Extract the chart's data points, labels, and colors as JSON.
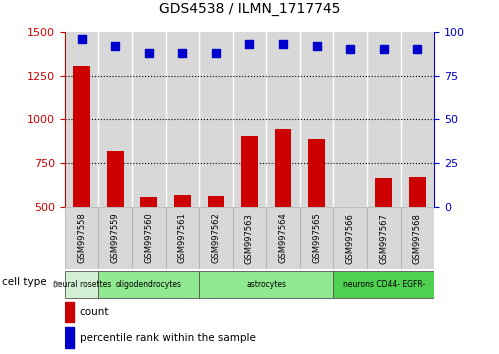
{
  "title": "GDS4538 / ILMN_1717745",
  "samples": [
    "GSM997558",
    "GSM997559",
    "GSM997560",
    "GSM997561",
    "GSM997562",
    "GSM997563",
    "GSM997564",
    "GSM997565",
    "GSM997566",
    "GSM997567",
    "GSM997568"
  ],
  "counts": [
    1305,
    820,
    555,
    570,
    565,
    905,
    945,
    890,
    500,
    665,
    670
  ],
  "percentiles": [
    96,
    92,
    88,
    88,
    88,
    93,
    93,
    92,
    90,
    90,
    90
  ],
  "cell_types": [
    {
      "label": "neural rosettes",
      "start": 0,
      "end": 1,
      "color": "#d4f0d4"
    },
    {
      "label": "oligodendrocytes",
      "start": 1,
      "end": 4,
      "color": "#90e890"
    },
    {
      "label": "astrocytes",
      "start": 4,
      "end": 8,
      "color": "#90e890"
    },
    {
      "label": "neurons CD44- EGFR-",
      "start": 8,
      "end": 11,
      "color": "#50d050"
    }
  ],
  "ylim_left": [
    500,
    1500
  ],
  "ylim_right": [
    0,
    100
  ],
  "yticks_left": [
    500,
    750,
    1000,
    1250,
    1500
  ],
  "yticks_right": [
    0,
    25,
    50,
    75,
    100
  ],
  "bar_color": "#cc0000",
  "dot_color": "#0000cc",
  "bg_color": "#ffffff",
  "col_bg": "#d8d8d8",
  "dotted_yticks": [
    750,
    1000,
    1250
  ],
  "legend_count_color": "#cc0000",
  "legend_pct_color": "#0000cc"
}
